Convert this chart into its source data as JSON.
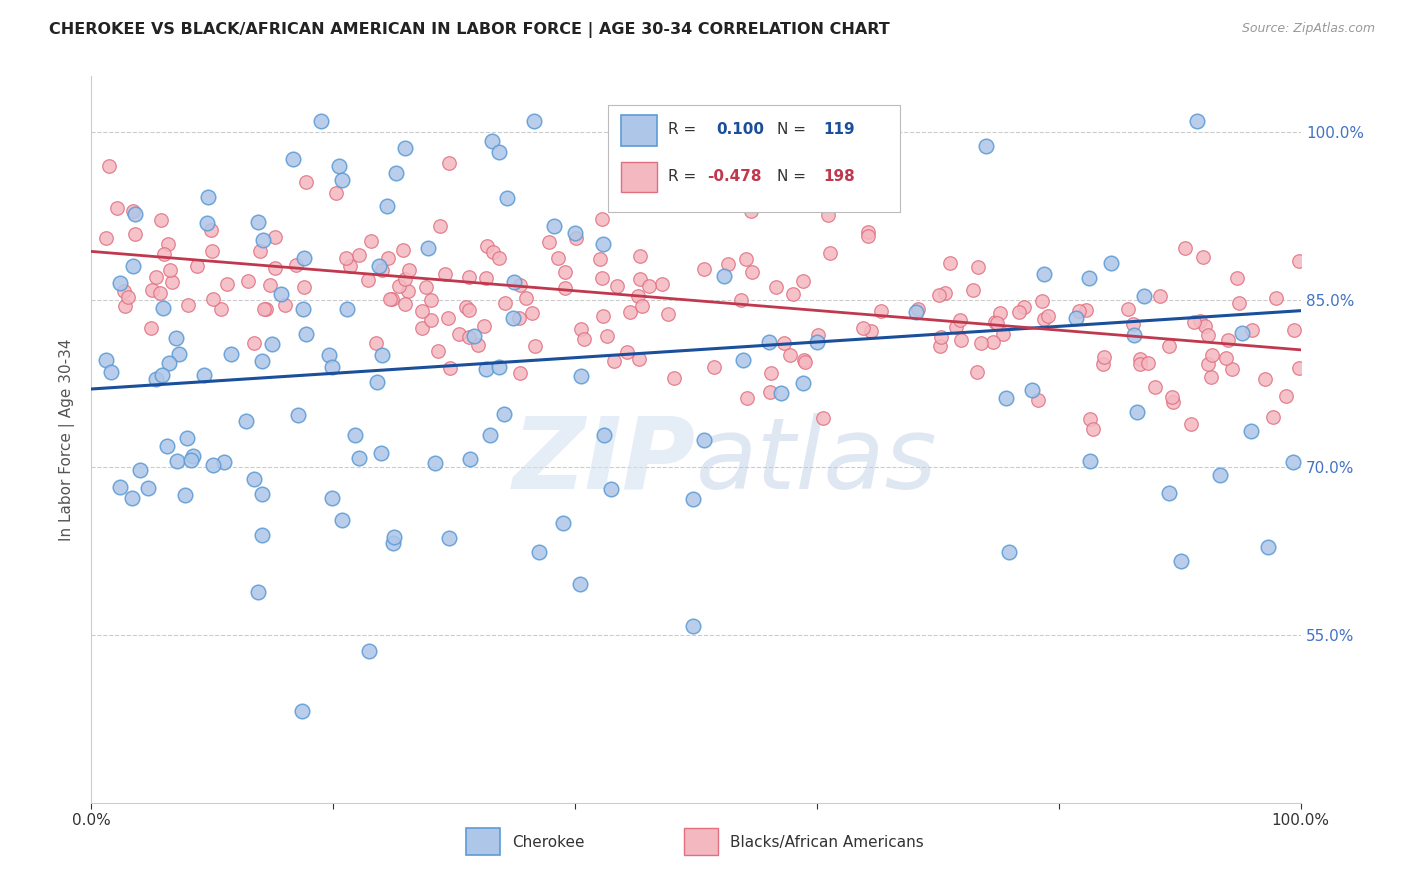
{
  "title": "CHEROKEE VS BLACK/AFRICAN AMERICAN IN LABOR FORCE | AGE 30-34 CORRELATION CHART",
  "source": "Source: ZipAtlas.com",
  "ylabel": "In Labor Force | Age 30-34",
  "xlim": [
    0.0,
    1.0
  ],
  "ylim": [
    0.4,
    1.05
  ],
  "yticks": [
    0.55,
    0.7,
    0.85,
    1.0
  ],
  "ytick_labels": [
    "55.0%",
    "70.0%",
    "85.0%",
    "100.0%"
  ],
  "blue_intercept": 0.77,
  "blue_slope": 0.07,
  "pink_intercept": 0.893,
  "pink_slope": -0.088,
  "watermark": "ZIPatlas",
  "background_color": "#ffffff",
  "scatter_blue_color": "#aec6e8",
  "scatter_blue_edge": "#5b9bd5",
  "scatter_pink_color": "#f4b8c1",
  "scatter_pink_edge": "#e07080",
  "line_blue_color": "#1a4f9c",
  "line_pink_color": "#c0384e",
  "title_color": "#222222",
  "axis_label_color": "#555555",
  "tick_color_right": "#4472c4",
  "grid_color": "#cccccc",
  "blue_seed": 42,
  "pink_seed": 77,
  "blue_N": 119,
  "pink_N": 198
}
